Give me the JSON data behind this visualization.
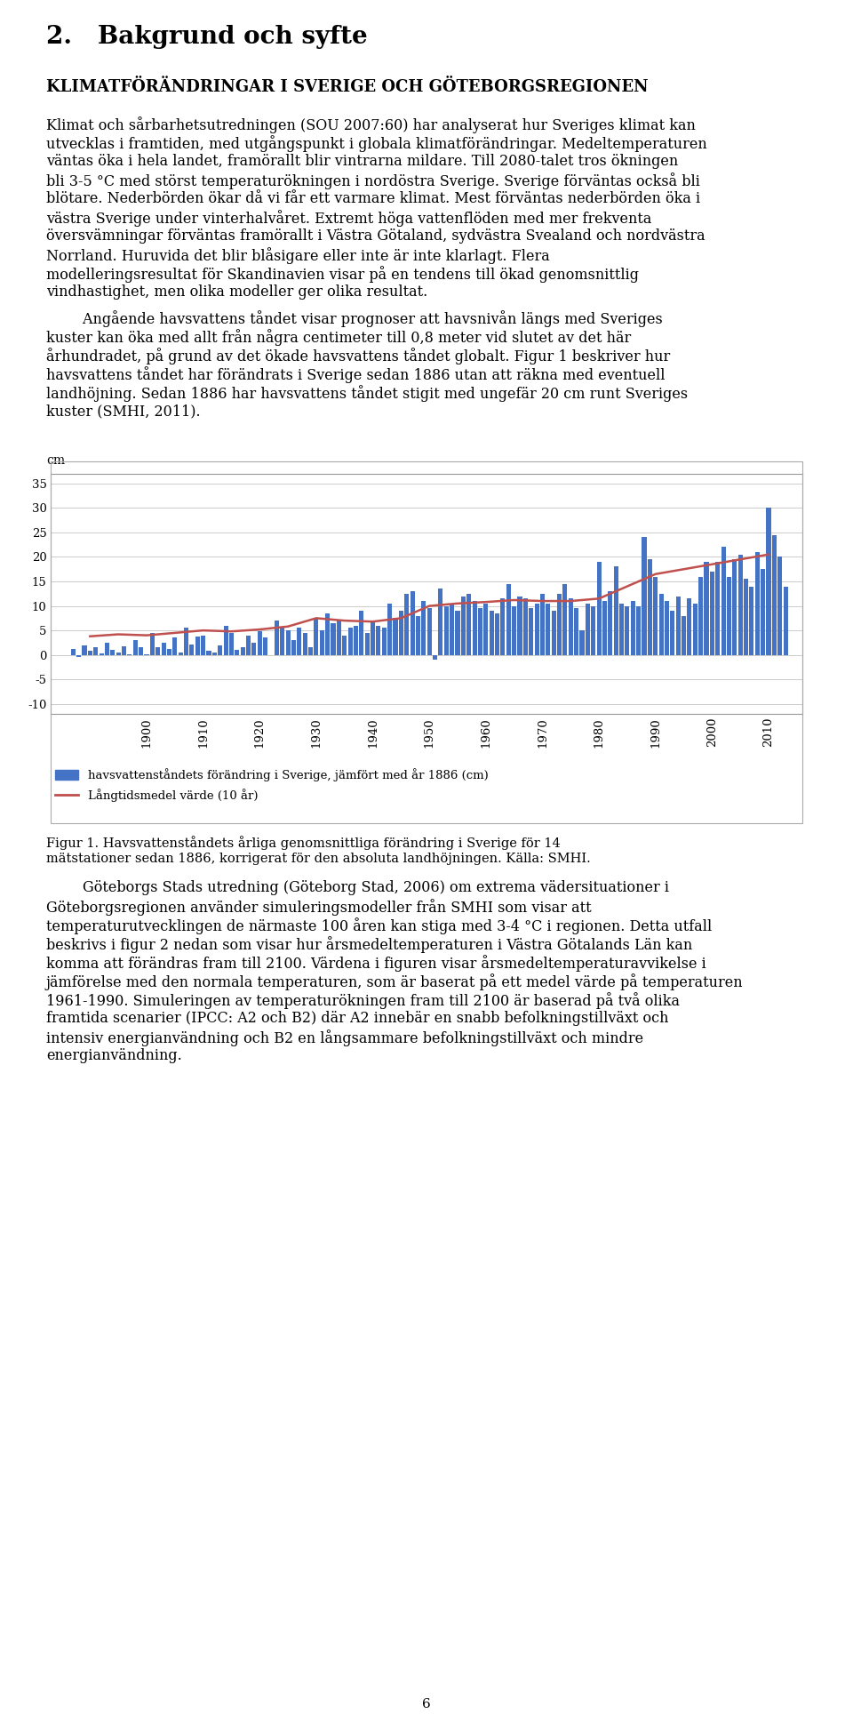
{
  "page_width": 9.6,
  "page_height": 19.46,
  "background_color": "#ffffff",
  "heading1": "2.   Bakgrund och syfte",
  "heading2": "Klimatförändringar i Sverige och Göteborgsregionen",
  "para1": "Klimat och sårbarhetsutredningen (SOU 2007:60) har analyserat hur Sveriges klimat kan utvecklas i framtiden, med utgångspunkt i globala klimatförändringar. Medeltemperaturen väntas öka i hela landet, framörallt blir vintrarna mildare. Till 2080-talet tros ökningen bli 3-5 °C med störst temperaturökningen i nordöstra Sverige. Sverige förväntas också bli blötare. Nederbörden ökar då vi får ett varmare klimat. Mest förväntas nederbörden öka i västra Sverige under vinterhalvåret. Extremt höga vattenflöden med mer frekventa översvämningar förväntas framörallt i Västra Götaland, sydvästra Svealand och nordvästra Norrland. Huruvida det blir blåsigare eller inte är inte klarlagt. Flera modelleringsresultat för Skandinavien visar på en tendens till ökad genomsnittlig vindhastighet, men olika modeller ger olika resultat.",
  "para2_indent": "     Angående havsvattens tåndet visar prognoser att havsnivån längs med Sveriges kuster kan öka med allt från några centimeter till 0,8 meter vid slutet av det här århundradet, på grund av det ökade havsvattens tåndet globalt. Figur 1 beskriver hur havsvattens tåndet har förändrats i Sverige sedan 1886 utan att räkna med eventuell landhöjning. Sedan 1886 har havsvattens tåndet stigit med ungefär 20 cm runt Sveriges kuster (SMHI, 2011).",
  "para2": "Angående havsvattens tåndet visar prognoser att havsnivån längs med Sveriges kuster kan öka med allt från några centimeter till 0,8 meter vid slutet av det här århundradet, på grund av det ökade havsvattens tåndet globalt. Figur 1 beskriver hur havsvattens tåndet har förändrats i Sverige sedan 1886 utan att räkna med eventuell landhöjning. Sedan 1886 har havsvattens tåndet stigit med ungefär 20 cm runt Sveriges kuster (SMHI, 2011).",
  "fig_caption_line1": "Figur 1. Havsvattenståndets årliga genomsnittliga förändring i Sverige för 14",
  "fig_caption_line2": "mätstationer sedan 1886, korrigerat för den absoluta landhöjningen. Källa: SMHI.",
  "para3": "Göteborgs Stads utredning (Göteborg Stad, 2006) om extrema vädersituationer i Göteborgsregionen använder simuleringsmodeller från SMHI som visar att temperaturutvecklingen de närmaste 100 åren kan stiga med 3-4 °C i regionen. Detta utfall beskrivs i figur 2 nedan som visar hur årsmedeltemperaturen i Västra Götalands Län kan komma att förändras fram till 2100. Värdena i figuren visar årsmedeltemperaturavvikelse i jämförelse med den normala temperaturen, som är baserat på ett medel värde på temperaturen 1961-1990. Simuleringen av temperaturökningen fram till 2100 är baserad på två olika framtida scenarier (IPCC: A2 och B2) där A2 innebär en snabb befolkningstillväxt och intensiv energianvändning och B2 en långsammare befolkningstillväxt och mindre energianvändning.",
  "page_number": "6",
  "legend1": "havsvattenståndets förändring i Sverige, jämfört med år 1886 (cm)",
  "legend2": "Långtidsmedel värde (10 år)",
  "bar_color": "#4472C4",
  "line_color": "#C0504D",
  "chart_yticks": [
    35,
    30,
    25,
    20,
    15,
    10,
    5,
    0,
    -5,
    -10
  ],
  "chart_xticks": [
    1900,
    1910,
    1920,
    1930,
    1940,
    1950,
    1960,
    1970,
    1980,
    1990,
    2000,
    2010
  ],
  "bar_data_years": [
    1886,
    1887,
    1888,
    1889,
    1890,
    1891,
    1892,
    1893,
    1894,
    1895,
    1896,
    1897,
    1898,
    1899,
    1900,
    1901,
    1902,
    1903,
    1904,
    1905,
    1906,
    1907,
    1908,
    1909,
    1910,
    1911,
    1912,
    1913,
    1914,
    1915,
    1916,
    1917,
    1918,
    1919,
    1920,
    1921,
    1922,
    1923,
    1924,
    1925,
    1926,
    1927,
    1928,
    1929,
    1930,
    1931,
    1932,
    1933,
    1934,
    1935,
    1936,
    1937,
    1938,
    1939,
    1940,
    1941,
    1942,
    1943,
    1944,
    1945,
    1946,
    1947,
    1948,
    1949,
    1950,
    1951,
    1952,
    1953,
    1954,
    1955,
    1956,
    1957,
    1958,
    1959,
    1960,
    1961,
    1962,
    1963,
    1964,
    1965,
    1966,
    1967,
    1968,
    1969,
    1970,
    1971,
    1972,
    1973,
    1974,
    1975,
    1976,
    1977,
    1978,
    1979,
    1980,
    1981,
    1982,
    1983,
    1984,
    1985,
    1986,
    1987,
    1988,
    1989,
    1990,
    1991,
    1992,
    1993,
    1994,
    1995,
    1996,
    1997,
    1998,
    1999,
    2000,
    2001,
    2002,
    2003,
    2004,
    2005,
    2006,
    2007,
    2008,
    2009,
    2010,
    2011,
    2012,
    2013
  ],
  "bar_data_values": [
    0.0,
    1.2,
    -0.5,
    2.0,
    0.8,
    1.5,
    0.3,
    2.5,
    1.0,
    0.5,
    1.8,
    0.2,
    3.0,
    1.5,
    0.1,
    4.5,
    1.5,
    2.5,
    1.2,
    3.5,
    0.5,
    5.5,
    2.2,
    3.8,
    4.0,
    0.8,
    0.5,
    2.0,
    6.0,
    4.5,
    1.0,
    1.5,
    4.0,
    2.5,
    4.8,
    3.5,
    0.0,
    7.0,
    5.5,
    5.0,
    3.0,
    5.5,
    4.5,
    1.5,
    7.5,
    5.0,
    8.5,
    6.5,
    7.0,
    4.0,
    5.5,
    6.0,
    9.0,
    4.5,
    7.0,
    6.0,
    5.5,
    10.5,
    7.5,
    9.0,
    12.5,
    13.0,
    8.0,
    11.0,
    9.5,
    -1.0,
    13.5,
    10.0,
    10.5,
    9.0,
    12.0,
    12.5,
    11.0,
    9.5,
    10.5,
    9.0,
    8.5,
    11.5,
    14.5,
    10.0,
    12.0,
    11.5,
    9.5,
    10.5,
    12.5,
    10.5,
    9.0,
    12.5,
    14.5,
    11.5,
    9.5,
    5.0,
    10.5,
    10.0,
    19.0,
    11.0,
    13.0,
    18.0,
    10.5,
    10.0,
    11.0,
    10.0,
    24.0,
    19.5,
    16.0,
    12.5,
    11.0,
    9.0,
    12.0,
    8.0,
    11.5,
    10.5,
    16.0,
    19.0,
    17.0,
    19.0,
    22.0,
    16.0,
    19.5,
    20.5,
    15.5,
    14.0,
    21.0,
    17.5,
    30.0,
    24.5,
    20.0,
    14.0
  ],
  "line_data_years": [
    1890,
    1895,
    1900,
    1905,
    1910,
    1915,
    1920,
    1925,
    1930,
    1935,
    1940,
    1945,
    1950,
    1955,
    1960,
    1965,
    1970,
    1975,
    1980,
    1985,
    1990,
    1995,
    2000,
    2005,
    2010
  ],
  "line_data_values": [
    3.8,
    4.2,
    4.0,
    4.5,
    5.0,
    4.8,
    5.2,
    5.8,
    7.5,
    7.0,
    6.8,
    7.5,
    10.0,
    10.5,
    10.8,
    11.2,
    11.0,
    11.0,
    11.5,
    14.0,
    16.5,
    17.5,
    18.5,
    19.5,
    20.5
  ]
}
